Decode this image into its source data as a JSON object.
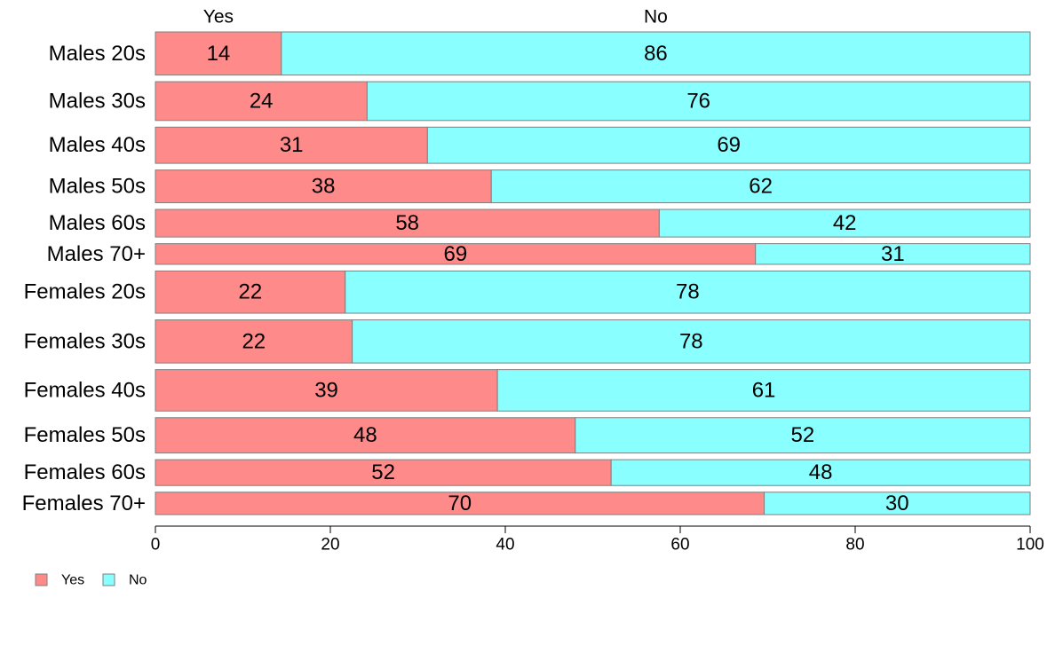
{
  "chart_data": {
    "type": "bar",
    "orientation": "horizontal",
    "stacked": true,
    "categories": [
      "Males 20s",
      "Males 30s",
      "Males 40s",
      "Males 50s",
      "Males 60s",
      "Males 70+",
      "Females 20s",
      "Females 30s",
      "Females 40s",
      "Females 50s",
      "Females 60s",
      "Females 70+"
    ],
    "series": [
      {
        "name": "Yes",
        "color": "#ff8a8a",
        "values": [
          14.4,
          24.2,
          31.1,
          38.4,
          57.6,
          68.6,
          21.7,
          22.5,
          39.1,
          48.0,
          52.1,
          69.6
        ],
        "labels": [
          "14",
          "24",
          "31",
          "38",
          "58",
          "69",
          "22",
          "22",
          "39",
          "48",
          "52",
          "70"
        ]
      },
      {
        "name": "No",
        "color": "#8affff",
        "values": [
          85.6,
          75.8,
          68.9,
          61.6,
          42.4,
          31.4,
          78.3,
          77.5,
          60.9,
          52.0,
          47.9,
          30.4
        ],
        "labels": [
          "86",
          "76",
          "69",
          "62",
          "42",
          "31",
          "78",
          "78",
          "61",
          "52",
          "48",
          "30"
        ]
      }
    ],
    "bar_weights": [
      50,
      45,
      42,
      38,
      32,
      24,
      49,
      50,
      48,
      41,
      30,
      26
    ],
    "xlim": [
      0,
      100
    ],
    "xticks": [
      "0",
      "20",
      "40",
      "60",
      "80",
      "100"
    ],
    "top_labels": [
      "Yes",
      "No"
    ],
    "legend": {
      "placement": "bottom-left",
      "entries": [
        "Yes",
        "No"
      ]
    },
    "grid": false,
    "title": "",
    "xlabel": "",
    "ylabel": ""
  }
}
